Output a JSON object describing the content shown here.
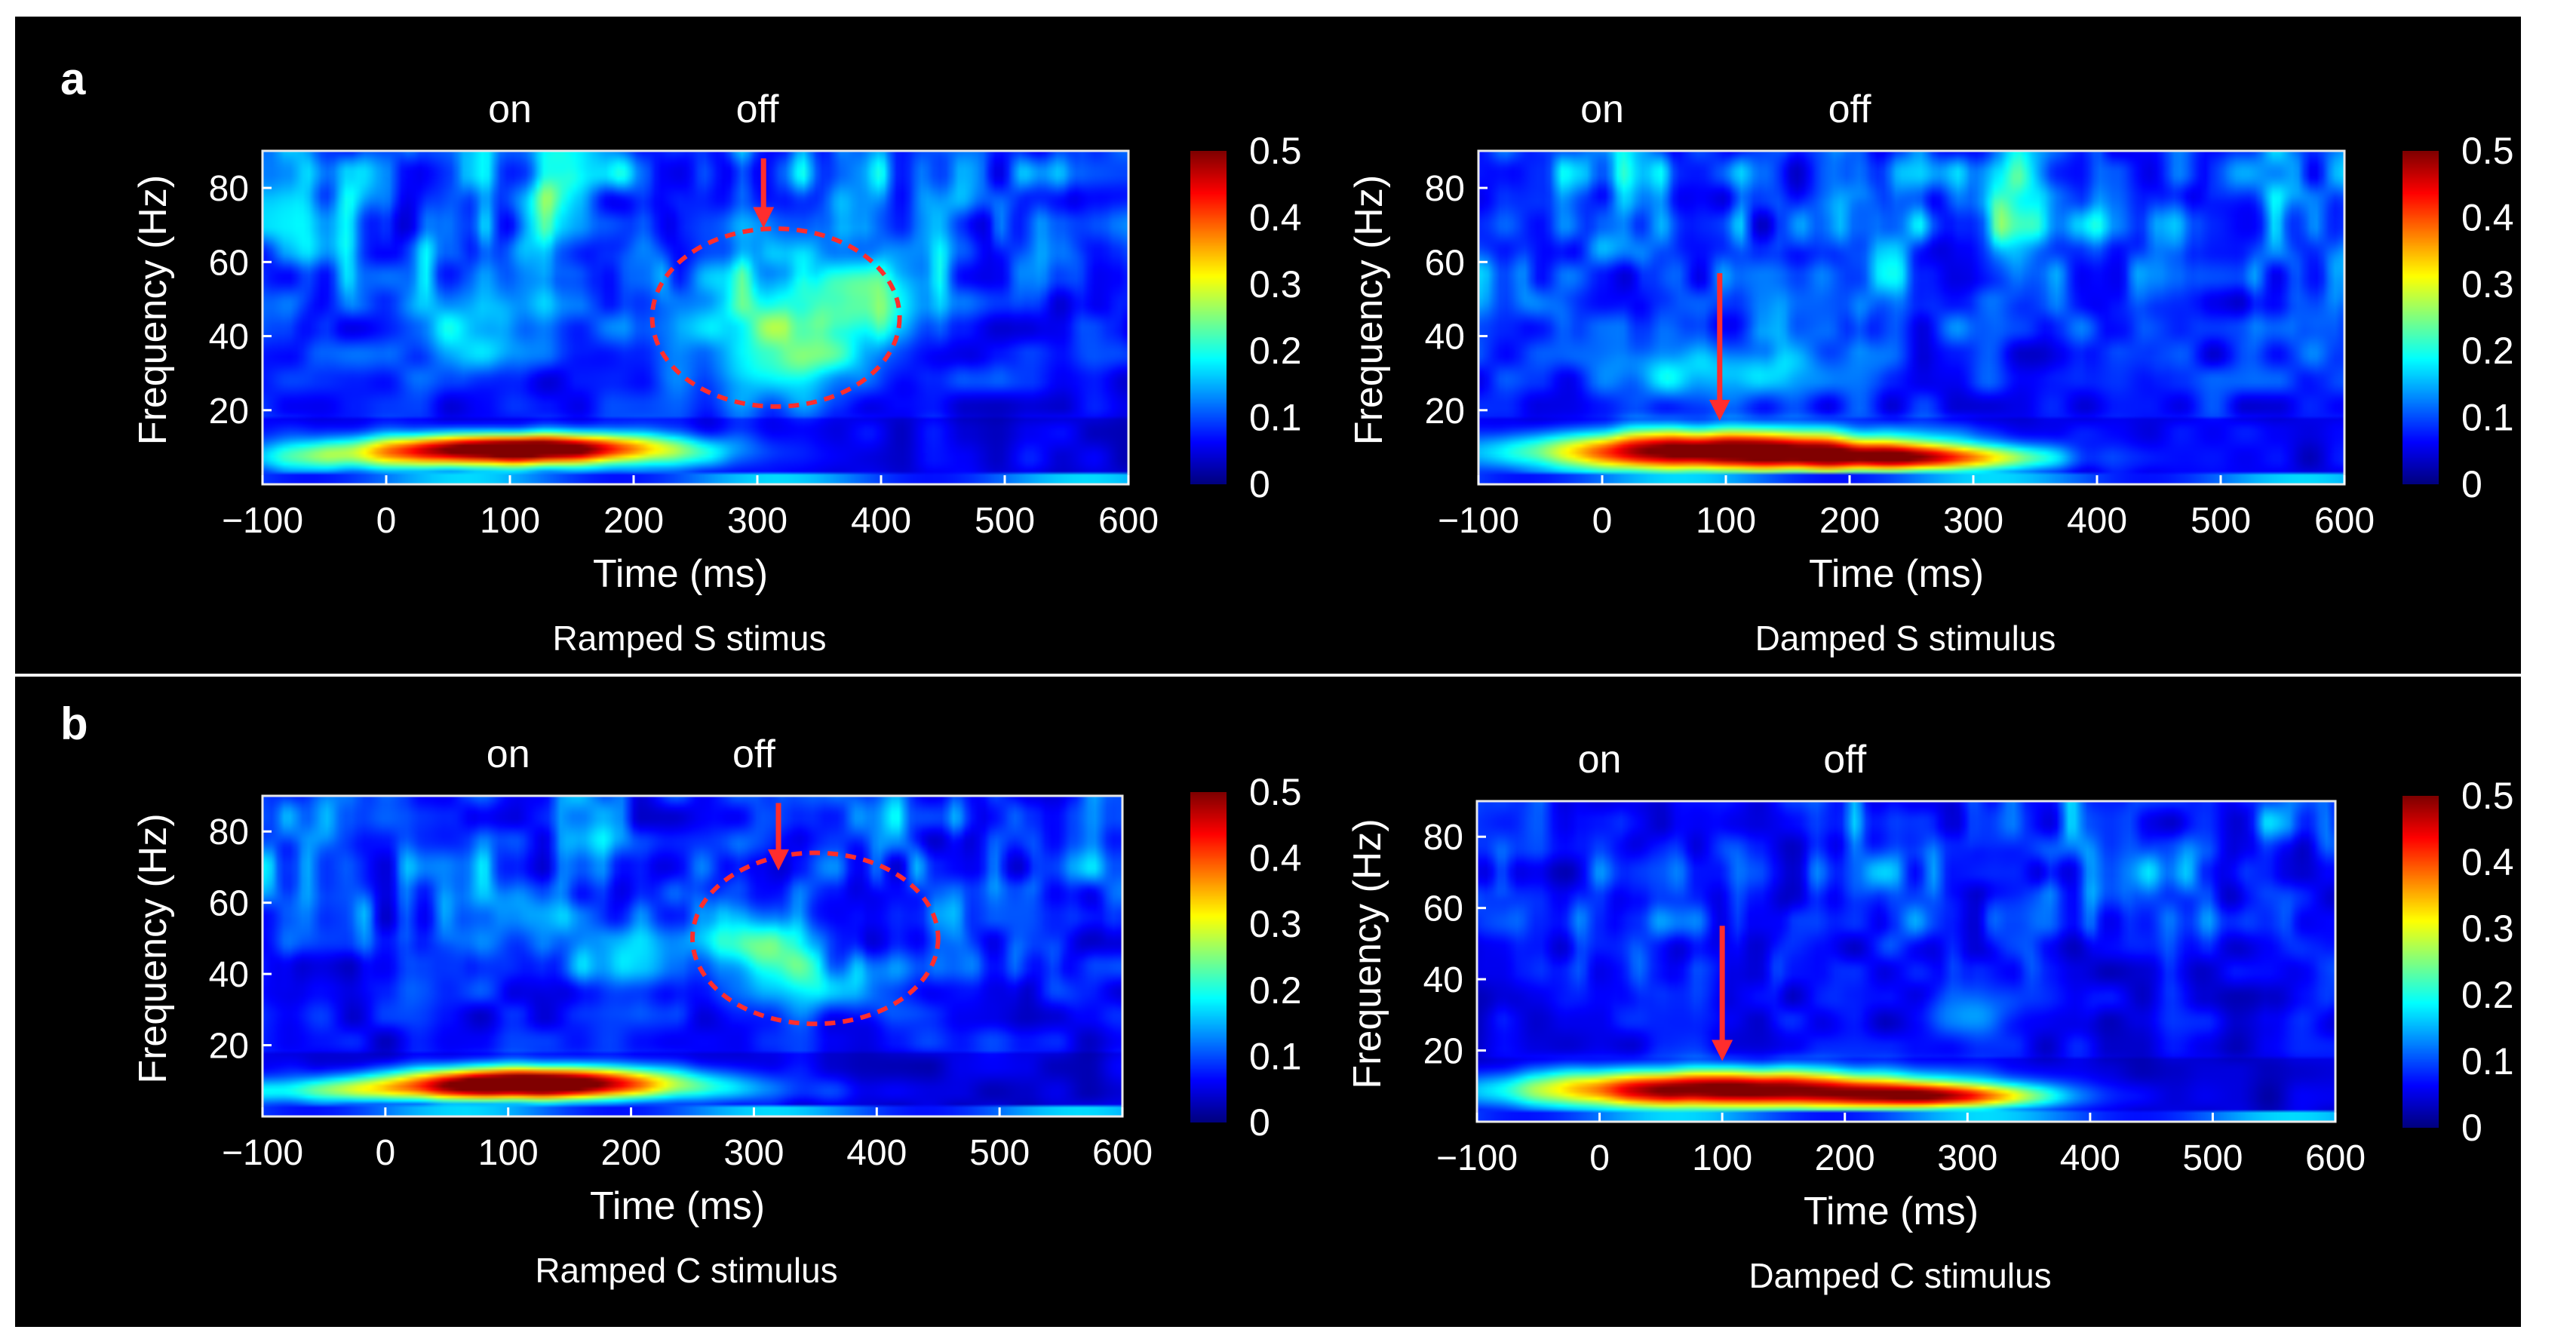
{
  "colors": {
    "background": "#000000",
    "text": "#ffffff",
    "annotation": "#ff2d2d",
    "divider": "#f2f2f2"
  },
  "chart_data": [
    {
      "type": "heatmap",
      "panel_label": "a",
      "caption": "Ramped S stimus",
      "xlabel": "Time (ms)",
      "ylabel": "Frequency (Hz)",
      "xlim": [
        -100,
        600
      ],
      "ylim": [
        0,
        90
      ],
      "xticks": [
        "−100",
        "0",
        "100",
        "200",
        "300",
        "400",
        "500",
        "600"
      ],
      "yticks": [
        "20",
        "40",
        "60",
        "80"
      ],
      "colorbar": {
        "range": [
          0,
          0.5
        ],
        "ticks": [
          "0",
          "0.1",
          "0.2",
          "0.3",
          "0.4",
          "0.5"
        ],
        "colormap": "jet"
      },
      "markers": [
        {
          "label": "on",
          "x": 100
        },
        {
          "label": "off",
          "x": 300
        }
      ],
      "blobs": [
        {
          "t": 110,
          "f": 10,
          "st": 85,
          "sf": 2.8,
          "v": 0.45
        },
        {
          "t": 40,
          "f": 7,
          "st": 160,
          "sf": 3,
          "v": 0.18
        },
        {
          "t": 330,
          "f": 45,
          "st": 55,
          "sf": 12,
          "v": 0.13
        },
        {
          "t": 390,
          "f": 50,
          "st": 30,
          "sf": 7,
          "v": 0.1
        },
        {
          "t": 320,
          "f": 30,
          "st": 40,
          "sf": 6,
          "v": 0.08
        },
        {
          "t": 140,
          "f": 75,
          "st": 18,
          "sf": 12,
          "v": 0.1
        },
        {
          "t": 60,
          "f": 42,
          "st": 40,
          "sf": 8,
          "v": 0.08
        }
      ],
      "background_level": 0.09,
      "annotations": {
        "ellipse": {
          "t": 315,
          "f": 45,
          "rt": 100,
          "rf": 24
        },
        "arrow": {
          "t": 305,
          "f_from": 88,
          "f_to": 72
        }
      }
    },
    {
      "type": "heatmap",
      "caption": "Damped S stimulus",
      "xlabel": "Time (ms)",
      "ylabel": "Frequency (Hz)",
      "xlim": [
        -100,
        600
      ],
      "ylim": [
        0,
        90
      ],
      "xticks": [
        "−100",
        "0",
        "100",
        "200",
        "300",
        "400",
        "500",
        "600"
      ],
      "yticks": [
        "20",
        "40",
        "60",
        "80"
      ],
      "colorbar": {
        "range": [
          0,
          0.5
        ],
        "ticks": [
          "0",
          "0.1",
          "0.2",
          "0.3",
          "0.4",
          "0.5"
        ],
        "colormap": "jet"
      },
      "markers": [
        {
          "label": "on",
          "x": 0
        },
        {
          "label": "off",
          "x": 200
        }
      ],
      "blobs": [
        {
          "t": 95,
          "f": 9,
          "st": 110,
          "sf": 4,
          "v": 0.5
        },
        {
          "t": 260,
          "f": 7,
          "st": 70,
          "sf": 2.5,
          "v": 0.3
        },
        {
          "t": 90,
          "f": 30,
          "st": 60,
          "sf": 6,
          "v": 0.12
        },
        {
          "t": 330,
          "f": 72,
          "st": 18,
          "sf": 12,
          "v": 0.1
        }
      ],
      "background_level": 0.09,
      "annotations": {
        "arrow": {
          "t": 95,
          "f_from": 57,
          "f_to": 20
        }
      }
    },
    {
      "type": "heatmap",
      "panel_label": "b",
      "caption": "Ramped C stimulus",
      "xlabel": "Time (ms)",
      "ylabel": "Frequency (Hz)",
      "xlim": [
        -100,
        600
      ],
      "ylim": [
        0,
        90
      ],
      "xticks": [
        "−100",
        "0",
        "100",
        "200",
        "300",
        "400",
        "500",
        "600"
      ],
      "yticks": [
        "20",
        "40",
        "60",
        "80"
      ],
      "colorbar": {
        "range": [
          0,
          0.5
        ],
        "ticks": [
          "0",
          "0.1",
          "0.2",
          "0.3",
          "0.4",
          "0.5"
        ],
        "colormap": "jet"
      },
      "markers": [
        {
          "label": "on",
          "x": 100
        },
        {
          "label": "off",
          "x": 300
        }
      ],
      "blobs": [
        {
          "t": 120,
          "f": 10,
          "st": 85,
          "sf": 3,
          "v": 0.46
        },
        {
          "t": 60,
          "f": 7,
          "st": 150,
          "sf": 2.5,
          "v": 0.2
        },
        {
          "t": 310,
          "f": 48,
          "st": 30,
          "sf": 6,
          "v": 0.15
        },
        {
          "t": 360,
          "f": 36,
          "st": 40,
          "sf": 5,
          "v": 0.1
        },
        {
          "t": 200,
          "f": 45,
          "st": 35,
          "sf": 9,
          "v": 0.06
        }
      ],
      "background_level": 0.08,
      "annotations": {
        "ellipse": {
          "t": 350,
          "f": 50,
          "rt": 100,
          "rf": 24
        },
        "arrow": {
          "t": 320,
          "f_from": 88,
          "f_to": 72
        }
      }
    },
    {
      "type": "heatmap",
      "caption": "Damped C stimulus",
      "xlabel": "Time (ms)",
      "ylabel": "Frequency (Hz)",
      "xlim": [
        -100,
        600
      ],
      "ylim": [
        0,
        90
      ],
      "xticks": [
        "−100",
        "0",
        "100",
        "200",
        "300",
        "400",
        "500",
        "600"
      ],
      "yticks": [
        "20",
        "40",
        "60",
        "80"
      ],
      "colorbar": {
        "range": [
          0,
          0.5
        ],
        "ticks": [
          "0",
          "0.1",
          "0.2",
          "0.3",
          "0.4",
          "0.5"
        ],
        "colormap": "jet"
      },
      "markers": [
        {
          "label": "on",
          "x": 0
        },
        {
          "label": "off",
          "x": 200
        }
      ],
      "blobs": [
        {
          "t": 100,
          "f": 9,
          "st": 120,
          "sf": 4,
          "v": 0.5
        },
        {
          "t": 280,
          "f": 7,
          "st": 60,
          "sf": 2.5,
          "v": 0.32
        },
        {
          "t": 300,
          "f": 30,
          "st": 30,
          "sf": 5,
          "v": 0.06
        }
      ],
      "background_level": 0.07,
      "annotations": {
        "arrow": {
          "t": 100,
          "f_from": 55,
          "f_to": 20
        }
      }
    }
  ]
}
